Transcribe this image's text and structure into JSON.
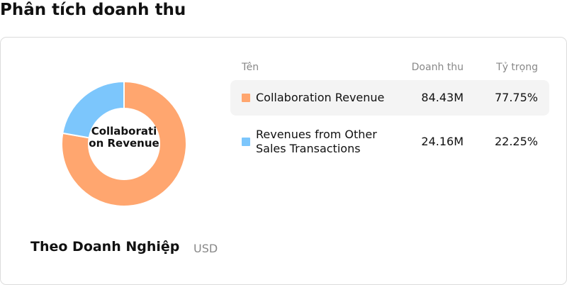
{
  "header": {
    "title": "Phân tích doanh thu"
  },
  "chart_data": {
    "type": "pie",
    "donut": true,
    "title": "Theo Doanh Nghiệp",
    "unit": "USD",
    "center_label": "Collaboration Revenue",
    "categories": [
      "Collaboration Revenue",
      "Revenues from Other Sales Transactions"
    ],
    "colors": [
      "#ffa66f",
      "#7cc6fc"
    ],
    "values": [
      77.75,
      22.25
    ],
    "value_labels": [
      "77.75%",
      "22.25%"
    ],
    "revenue": [
      84.43,
      24.16
    ],
    "revenue_labels": [
      "84.43M",
      "24.16M"
    ]
  },
  "table": {
    "columns": [
      "Tên",
      "Doanh thu",
      "Tỷ trọng"
    ]
  }
}
